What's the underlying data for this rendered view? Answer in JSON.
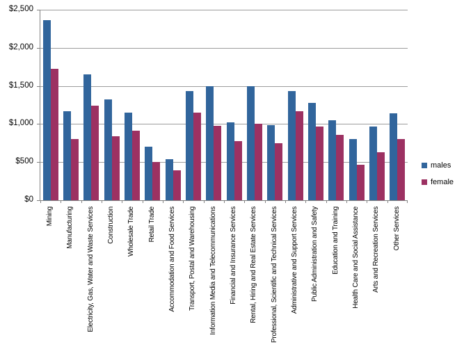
{
  "chart_data": {
    "type": "bar",
    "title": "",
    "xlabel": "",
    "ylabel": "",
    "ylim": [
      0,
      2500
    ],
    "grid": true,
    "legend_position": "right",
    "y_ticks": [
      "$0",
      "$500",
      "$1,000",
      "$1,500",
      "$2,000",
      "$2,500"
    ],
    "categories": [
      "Mining",
      "Manufacturing",
      "Electricity, Gas, Water and Waste Services",
      "Construction",
      "Wholesale Trade",
      "Retail Trade",
      "Accommodation and Food Services",
      "Transport, Postal and Warehousing",
      "Information Media and Telecommunications",
      "Financial and Insurance Services",
      "Rental, Hiring and Real Estate Services",
      "Professional, Scientific and Technical Services",
      "Administrative and Support Services",
      "Public Administration and Safety",
      "Education and Training",
      "Health Care and Social Assistance",
      "Arts and Recreation Services",
      "Other Services"
    ],
    "series": [
      {
        "name": "males",
        "color": "#31659c",
        "values": [
          2360,
          1170,
          1650,
          1320,
          1150,
          700,
          540,
          1430,
          1500,
          1020,
          1500,
          990,
          1430,
          1280,
          1050,
          800,
          970,
          1145
        ]
      },
      {
        "name": "female",
        "color": "#9c3162",
        "values": [
          1725,
          800,
          1245,
          840,
          915,
          500,
          390,
          1150,
          975,
          775,
          1000,
          750,
          1170,
          970,
          855,
          465,
          630,
          805
        ]
      }
    ],
    "colors": {
      "gridline": "#9c9c9c",
      "axis": "#808080",
      "text": "#000000",
      "background": "#ffffff"
    }
  }
}
